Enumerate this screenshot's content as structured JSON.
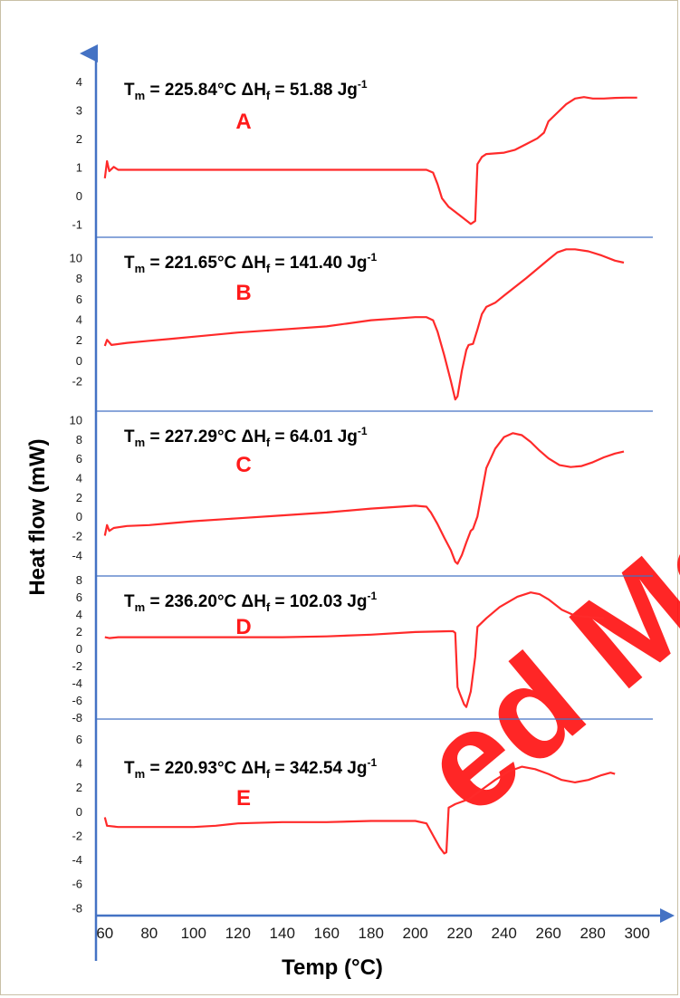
{
  "colors": {
    "curve": "#ff2a2a",
    "axis": "#4472c4",
    "separator": "#4472c4",
    "letter": "#ff1a1a",
    "watermark": "#ff0000"
  },
  "watermark": {
    "text": "Accepted Ma",
    "visible_text": "ed Ma"
  },
  "chart_data": {
    "type": "line",
    "xlabel": "Temp (°C)",
    "ylabel": "Heat flow (mW)",
    "x_ticks": [
      "60",
      "80",
      "100",
      "120",
      "140",
      "160",
      "180",
      "200",
      "220",
      "240",
      "260",
      "280",
      "300"
    ],
    "xlim": [
      56,
      303
    ],
    "grid": false,
    "legend": "none",
    "panels": [
      {
        "letter": "A",
        "annotation": {
          "tm_value": "= 225.84°C",
          "dh_value": "= 51.88 Jg"
        },
        "ylim": [
          -1.5,
          4.6
        ],
        "y_ticks": [
          "4",
          "3",
          "2",
          "1",
          "0",
          "-1"
        ],
        "points": [
          [
            60,
            0.6
          ],
          [
            61,
            1.2
          ],
          [
            62,
            0.85
          ],
          [
            64,
            1.0
          ],
          [
            66,
            0.9
          ],
          [
            70,
            0.9
          ],
          [
            80,
            0.9
          ],
          [
            100,
            0.9
          ],
          [
            120,
            0.9
          ],
          [
            140,
            0.9
          ],
          [
            160,
            0.9
          ],
          [
            180,
            0.9
          ],
          [
            200,
            0.9
          ],
          [
            205,
            0.9
          ],
          [
            208,
            0.8
          ],
          [
            210,
            0.4
          ],
          [
            212,
            -0.1
          ],
          [
            215,
            -0.4
          ],
          [
            220,
            -0.7
          ],
          [
            225,
            -1.0
          ],
          [
            227,
            -0.9
          ],
          [
            228,
            1.1
          ],
          [
            230,
            1.35
          ],
          [
            232,
            1.45
          ],
          [
            240,
            1.5
          ],
          [
            245,
            1.6
          ],
          [
            250,
            1.8
          ],
          [
            255,
            2.0
          ],
          [
            258,
            2.2
          ],
          [
            260,
            2.6
          ],
          [
            264,
            2.9
          ],
          [
            268,
            3.2
          ],
          [
            272,
            3.4
          ],
          [
            276,
            3.45
          ],
          [
            280,
            3.4
          ],
          [
            285,
            3.4
          ],
          [
            290,
            3.42
          ],
          [
            295,
            3.43
          ],
          [
            300,
            3.43
          ]
        ]
      },
      {
        "letter": "B",
        "annotation": {
          "tm_value": "= 221.65°C",
          "dh_value": "= 141.40 Jg"
        },
        "ylim": [
          -4.5,
          11
        ],
        "y_ticks": [
          "10",
          "8",
          "6",
          "4",
          "2",
          "0",
          "-2"
        ],
        "points": [
          [
            60,
            1.4
          ],
          [
            61,
            2.0
          ],
          [
            63,
            1.5
          ],
          [
            70,
            1.7
          ],
          [
            80,
            1.9
          ],
          [
            90,
            2.1
          ],
          [
            100,
            2.3
          ],
          [
            120,
            2.7
          ],
          [
            140,
            3.0
          ],
          [
            160,
            3.3
          ],
          [
            180,
            3.9
          ],
          [
            200,
            4.2
          ],
          [
            205,
            4.2
          ],
          [
            208,
            3.9
          ],
          [
            210,
            2.8
          ],
          [
            213,
            0.5
          ],
          [
            216,
            -2.0
          ],
          [
            218,
            -3.8
          ],
          [
            219,
            -3.5
          ],
          [
            221,
            -1.0
          ],
          [
            223,
            1.0
          ],
          [
            224,
            1.5
          ],
          [
            226,
            1.6
          ],
          [
            228,
            3.0
          ],
          [
            230,
            4.5
          ],
          [
            232,
            5.2
          ],
          [
            236,
            5.6
          ],
          [
            240,
            6.3
          ],
          [
            250,
            8.0
          ],
          [
            260,
            9.8
          ],
          [
            264,
            10.5
          ],
          [
            268,
            10.8
          ],
          [
            272,
            10.8
          ],
          [
            278,
            10.6
          ],
          [
            284,
            10.2
          ],
          [
            290,
            9.7
          ],
          [
            294,
            9.5
          ]
        ]
      },
      {
        "letter": "C",
        "annotation": {
          "tm_value": "= 227.29°C",
          "dh_value": "= 64.01 Jg"
        },
        "ylim": [
          -5.7,
          10.6
        ],
        "y_ticks": [
          "10",
          "8",
          "6",
          "4",
          "2",
          "0",
          "-2",
          "-4"
        ],
        "points": [
          [
            60,
            -2.0
          ],
          [
            61,
            -0.9
          ],
          [
            62,
            -1.5
          ],
          [
            64,
            -1.2
          ],
          [
            70,
            -1.0
          ],
          [
            80,
            -0.9
          ],
          [
            90,
            -0.7
          ],
          [
            100,
            -0.5
          ],
          [
            120,
            -0.2
          ],
          [
            140,
            0.1
          ],
          [
            160,
            0.4
          ],
          [
            180,
            0.8
          ],
          [
            200,
            1.1
          ],
          [
            205,
            1.0
          ],
          [
            207,
            0.4
          ],
          [
            210,
            -0.8
          ],
          [
            213,
            -2.2
          ],
          [
            216,
            -3.5
          ],
          [
            218,
            -4.7
          ],
          [
            219,
            -4.9
          ],
          [
            221,
            -4.0
          ],
          [
            223,
            -2.7
          ],
          [
            225,
            -1.5
          ],
          [
            226,
            -1.3
          ],
          [
            228,
            0.0
          ],
          [
            230,
            2.5
          ],
          [
            232,
            5.0
          ],
          [
            236,
            7.0
          ],
          [
            240,
            8.2
          ],
          [
            244,
            8.6
          ],
          [
            248,
            8.4
          ],
          [
            252,
            7.7
          ],
          [
            256,
            6.8
          ],
          [
            260,
            6.0
          ],
          [
            265,
            5.3
          ],
          [
            270,
            5.1
          ],
          [
            275,
            5.2
          ],
          [
            280,
            5.6
          ],
          [
            285,
            6.1
          ],
          [
            290,
            6.5
          ],
          [
            294,
            6.7
          ]
        ]
      },
      {
        "letter": "D",
        "annotation": {
          "tm_value": "= 236.20°C",
          "dh_value": "= 102.03 Jg"
        },
        "ylim": [
          -8.2,
          8.2
        ],
        "y_ticks": [
          "8",
          "6",
          "4",
          "2",
          "0",
          "-2",
          "-4",
          "-6",
          "-8"
        ],
        "points": [
          [
            60,
            1.3
          ],
          [
            62,
            1.2
          ],
          [
            66,
            1.3
          ],
          [
            80,
            1.3
          ],
          [
            100,
            1.3
          ],
          [
            120,
            1.3
          ],
          [
            140,
            1.3
          ],
          [
            160,
            1.4
          ],
          [
            180,
            1.6
          ],
          [
            200,
            1.9
          ],
          [
            215,
            2.0
          ],
          [
            217,
            2.0
          ],
          [
            218,
            1.8
          ],
          [
            219,
            -4.5
          ],
          [
            220,
            -5.2
          ],
          [
            222,
            -6.5
          ],
          [
            223,
            -6.8
          ],
          [
            225,
            -5.0
          ],
          [
            227,
            -1.0
          ],
          [
            228,
            2.5
          ],
          [
            232,
            3.5
          ],
          [
            238,
            4.8
          ],
          [
            246,
            6.0
          ],
          [
            252,
            6.5
          ],
          [
            256,
            6.3
          ],
          [
            260,
            5.7
          ],
          [
            266,
            4.5
          ],
          [
            272,
            3.8
          ],
          [
            280,
            3.6
          ],
          [
            285,
            3.5
          ]
        ]
      },
      {
        "letter": "E",
        "annotation": {
          "tm_value": "= 220.93°C",
          "dh_value": "= 342.54 Jg"
        },
        "ylim": [
          -8.5,
          7.2
        ],
        "y_ticks": [
          "6",
          "4",
          "2",
          "0",
          "-2",
          "-4",
          "-6",
          "-8"
        ],
        "points": [
          [
            60,
            -0.5
          ],
          [
            61,
            -1.2
          ],
          [
            66,
            -1.3
          ],
          [
            80,
            -1.3
          ],
          [
            100,
            -1.3
          ],
          [
            110,
            -1.2
          ],
          [
            120,
            -1.0
          ],
          [
            140,
            -0.9
          ],
          [
            160,
            -0.9
          ],
          [
            180,
            -0.8
          ],
          [
            200,
            -0.8
          ],
          [
            205,
            -1.0
          ],
          [
            208,
            -2.0
          ],
          [
            211,
            -3.0
          ],
          [
            213,
            -3.5
          ],
          [
            214,
            -3.4
          ],
          [
            215,
            0.3
          ],
          [
            218,
            0.6
          ],
          [
            224,
            1.0
          ],
          [
            230,
            1.8
          ],
          [
            236,
            2.6
          ],
          [
            242,
            3.3
          ],
          [
            248,
            3.7
          ],
          [
            254,
            3.5
          ],
          [
            260,
            3.1
          ],
          [
            266,
            2.6
          ],
          [
            272,
            2.4
          ],
          [
            278,
            2.6
          ],
          [
            284,
            3.0
          ],
          [
            288,
            3.2
          ],
          [
            290,
            3.1
          ]
        ]
      }
    ]
  }
}
